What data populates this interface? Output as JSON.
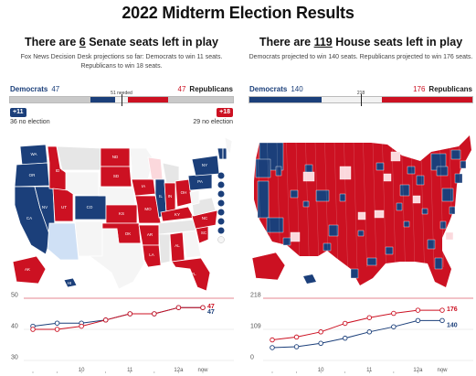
{
  "page_title": "2022 Midterm Election Results",
  "colors": {
    "dem": "#1b3f7a",
    "rep": "#cc1122",
    "dem_light": "#cfe0f5",
    "rep_light": "#fbd8dc",
    "tossup": "#e6e6e6",
    "no_election": "#f5f5f5"
  },
  "senate": {
    "headline_pre": "There are ",
    "headline_num": "6",
    "headline_post": " Senate seats left in play",
    "projection_text": "Fox News Decision Desk projections so far: Democrats to win 11 seats. Republicans to win 18 seats.",
    "dem_label": "Democrats",
    "dem_total": "47",
    "rep_label": "Republicans",
    "rep_total": "47",
    "needed_label": "51 needed",
    "dem_no_election": "36 no election",
    "rep_no_election": "29 no election",
    "dem_gain_badge": "+11",
    "rep_gain_badge": "+18",
    "bar_fractions": {
      "dem_noelect": 0.36,
      "dem_won": 0.11,
      "rep_won": 0.18,
      "rep_noelect": 0.29
    },
    "map_icon": "us-states-map"
  },
  "house": {
    "headline_pre": "There are ",
    "headline_num": "119",
    "headline_post": " House seats left in play",
    "projection_text": "Democrats projected to win 140 seats. Republicans projected to win 176 seats.",
    "dem_label": "Democrats",
    "dem_total": "140",
    "rep_label": "Republicans",
    "rep_total": "176",
    "needed_label": "218",
    "bar_fractions": {
      "dem_won": 0.322,
      "rep_won": 0.405
    },
    "map_icon": "us-districts-map"
  },
  "chart_data": [
    {
      "type": "line",
      "title": "",
      "x": [
        0,
        1,
        2,
        3,
        4,
        5,
        6,
        7
      ],
      "x_tick_labels": [
        {
          "x": 2,
          "label": "10"
        },
        {
          "x": 4,
          "label": "11"
        },
        {
          "x": 6,
          "label": "12a"
        },
        {
          "x": 7,
          "label": "now"
        }
      ],
      "y_ticks": [
        30,
        40,
        50
      ],
      "ylim": [
        30,
        50
      ],
      "grid": true,
      "series": [
        {
          "name": "",
          "color": "#1b3f7a",
          "values": [
            41,
            42,
            42,
            43,
            45,
            45,
            47,
            47
          ],
          "end_label": "47"
        },
        {
          "name": "",
          "color": "#cc1122",
          "values": [
            40,
            40,
            41,
            43,
            45,
            45,
            47,
            47
          ],
          "end_label": "47"
        }
      ]
    },
    {
      "type": "line",
      "title": "",
      "x": [
        0,
        1,
        2,
        3,
        4,
        5,
        6,
        7
      ],
      "x_tick_labels": [
        {
          "x": 2,
          "label": "10"
        },
        {
          "x": 4,
          "label": "11"
        },
        {
          "x": 6,
          "label": "12a"
        },
        {
          "x": 7,
          "label": "now"
        }
      ],
      "y_ticks": [
        0,
        109,
        218
      ],
      "ylim": [
        0,
        218
      ],
      "grid": true,
      "series": [
        {
          "name": "",
          "color": "#1b3f7a",
          "values": [
            45,
            48,
            60,
            78,
            100,
            118,
            140,
            140
          ],
          "end_label": "140"
        },
        {
          "name": "",
          "color": "#cc1122",
          "values": [
            72,
            82,
            100,
            130,
            150,
            165,
            176,
            176
          ],
          "end_label": "176"
        }
      ]
    }
  ]
}
